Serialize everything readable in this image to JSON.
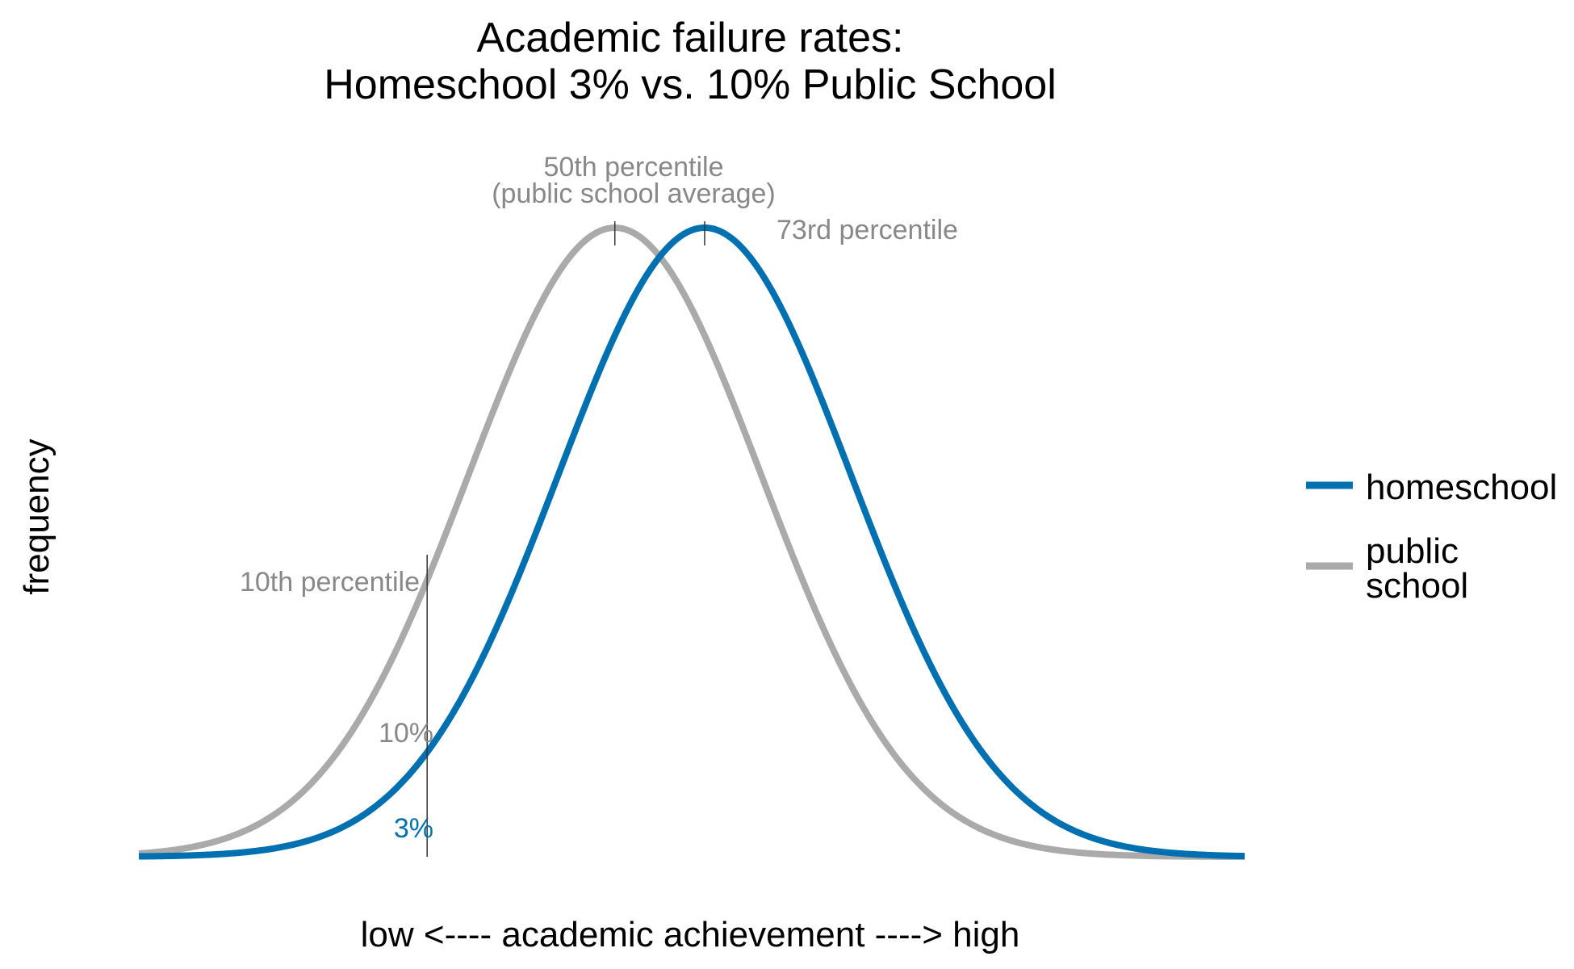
{
  "chart_data": {
    "type": "line",
    "title_line1": "Academic failure rates:",
    "title_line2": "Homeschool 3% vs. 10% Public School",
    "xlabel": "low <---- academic achievement ----> high",
    "ylabel": "frequency",
    "xlim": [
      -3.25,
      4.3
    ],
    "series": [
      {
        "name": "homeschool",
        "mean": 0.613,
        "sd": 1,
        "color": "#0070b0"
      },
      {
        "name": "public school",
        "mean": 0,
        "sd": 1,
        "color": "#aaaaaa"
      }
    ],
    "annotations": {
      "p50_line1": "50th percentile",
      "p50_line2": "(public school average)",
      "p73": "73rd percentile",
      "p10": "10th percentile",
      "cutoff_x": -1.2816,
      "public_fail": "10%",
      "home_fail": "3%"
    },
    "legend": {
      "position": "right",
      "homeschool": "homeschool",
      "public_line1": "public",
      "public_line2": "school"
    }
  }
}
